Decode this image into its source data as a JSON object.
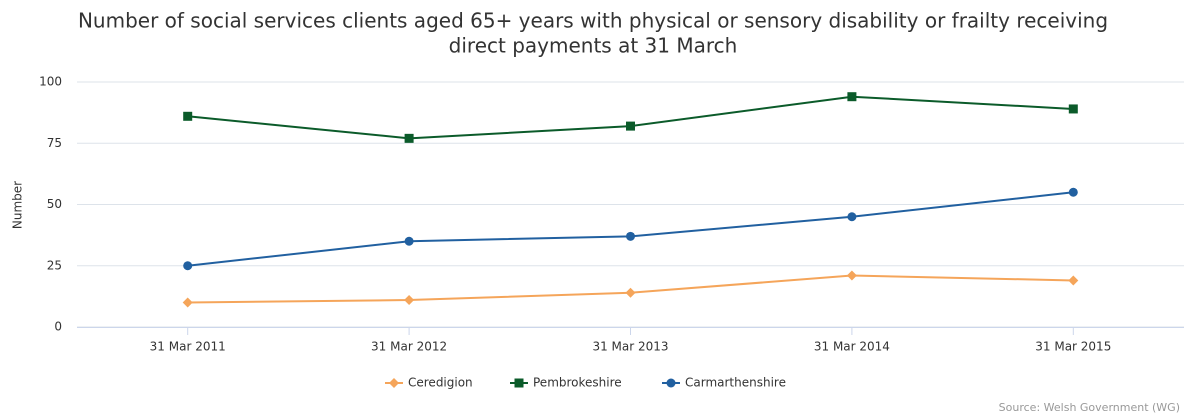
{
  "chart_data": {
    "type": "line",
    "title": "Number of social services clients aged 65+ years with physical or sensory disability or frailty receiving",
    "subtitle": "direct payments at 31 March",
    "y_label": "Number",
    "source": "Source: Welsh Government (WG)",
    "categories": [
      "31 Mar 2011",
      "31 Mar 2012",
      "31 Mar 2013",
      "31 Mar 2014",
      "31 Mar 2015"
    ],
    "series": [
      {
        "name": "Ceredigion",
        "color": "#f5a55a",
        "marker": "diamond",
        "values": [
          10,
          11,
          14,
          21,
          19
        ]
      },
      {
        "name": "Pembrokeshire",
        "color": "#0b5b2a",
        "marker": "square",
        "values": [
          86,
          77,
          82,
          94,
          89
        ]
      },
      {
        "name": "Carmarthenshire",
        "color": "#2160a0",
        "marker": "circle",
        "values": [
          25,
          35,
          37,
          45,
          55
        ]
      }
    ],
    "ylim": [
      0,
      100
    ],
    "yticks": [
      0,
      25,
      50,
      75,
      100
    ],
    "grid": true,
    "legend": "bottom"
  }
}
